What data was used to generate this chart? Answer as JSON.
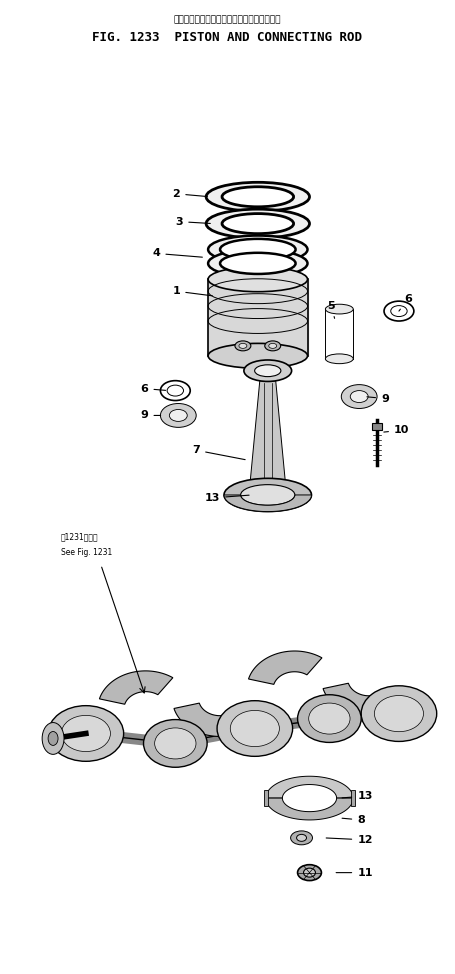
{
  "title_japanese": "ピストン・および　コネクティング　ロッド",
  "title_english": "FIG. 1233  PISTON AND CONNECTING ROD",
  "bg_color": "#ffffff",
  "line_color": "#000000",
  "fig_width": 4.55,
  "fig_height": 9.74,
  "dpi": 100
}
